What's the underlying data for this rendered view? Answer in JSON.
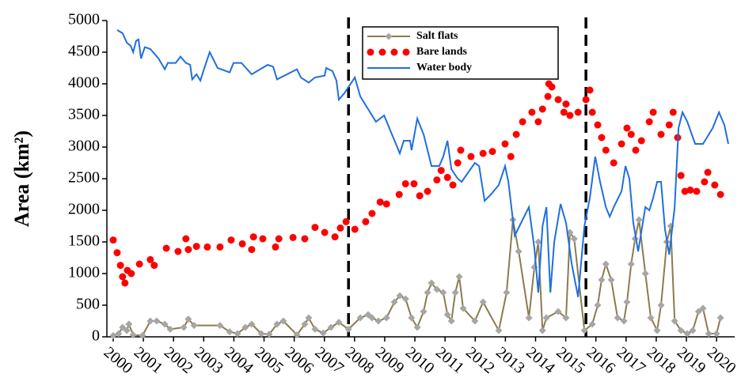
{
  "chart_data": {
    "type": "line",
    "y_label": "Area (km²)",
    "xlim": [
      1999.79,
      2020.6
    ],
    "xticks": [
      2000,
      2001,
      2002,
      2003,
      2004,
      2005,
      2006,
      2007,
      2008,
      2009,
      2010,
      2011,
      2012,
      2013,
      2014,
      2015,
      2016,
      2017,
      2018,
      2019,
      2020
    ],
    "ylim": [
      0,
      5000
    ],
    "yticks": [
      0,
      500,
      1000,
      1500,
      2000,
      2500,
      3000,
      3500,
      4000,
      4500,
      5000
    ],
    "vlines": [
      2007.8,
      2015.67
    ],
    "legend": "top",
    "series": [
      {
        "name": "Salt flats",
        "color": "#8c7b4f",
        "marker": "diamond",
        "marker_color": "#a6a6a6",
        "line": true,
        "x": [
          2000.0,
          2000.18,
          2000.31,
          2000.45,
          2000.52,
          2000.66,
          2000.97,
          2001.23,
          2001.44,
          2001.71,
          2001.89,
          2002.34,
          2002.49,
          2002.68,
          2003.54,
          2003.86,
          2004.12,
          2004.38,
          2004.59,
          2004.91,
          2005.17,
          2005.43,
          2005.64,
          2006.09,
          2006.35,
          2006.48,
          2006.69,
          2006.96,
          2007.22,
          2007.48,
          2007.8,
          2008.19,
          2008.45,
          2008.58,
          2008.79,
          2009.06,
          2009.32,
          2009.5,
          2009.69,
          2009.89,
          2010.08,
          2010.29,
          2010.42,
          2010.55,
          2010.73,
          2010.94,
          2011.08,
          2011.21,
          2011.34,
          2011.47,
          2011.6,
          2011.99,
          2012.26,
          2012.78,
          2013.04,
          2013.25,
          2013.44,
          2013.78,
          2013.96,
          2014.09,
          2014.23,
          2014.36,
          2014.75,
          2015.01,
          2015.14,
          2015.28,
          2015.62,
          2015.88,
          2016.06,
          2016.19,
          2016.33,
          2016.51,
          2016.72,
          2016.93,
          2017.03,
          2017.17,
          2017.3,
          2017.43,
          2017.64,
          2017.82,
          2018.03,
          2018.16,
          2018.35,
          2018.48,
          2018.61,
          2018.82,
          2019.03,
          2019.21,
          2019.4,
          2019.55,
          2019.74,
          2020.0,
          2020.13
        ],
        "values": [
          20,
          50,
          150,
          100,
          200,
          30,
          20,
          250,
          250,
          200,
          120,
          150,
          280,
          180,
          180,
          80,
          50,
          150,
          200,
          50,
          40,
          200,
          250,
          30,
          200,
          300,
          120,
          60,
          150,
          230,
          120,
          300,
          350,
          300,
          250,
          300,
          550,
          650,
          600,
          300,
          150,
          400,
          700,
          850,
          750,
          700,
          350,
          250,
          700,
          950,
          450,
          250,
          550,
          100,
          700,
          1850,
          1350,
          300,
          1100,
          1500,
          100,
          300,
          400,
          300,
          1650,
          1550,
          100,
          200,
          500,
          900,
          1150,
          900,
          300,
          250,
          550,
          1150,
          1550,
          1850,
          1000,
          300,
          100,
          500,
          1500,
          1750,
          250,
          100,
          50,
          100,
          400,
          450,
          50,
          50,
          300
        ]
      },
      {
        "name": "Bare lands",
        "color": "#ff0000",
        "marker": "dot",
        "line": false,
        "x": [
          2000.0,
          2000.13,
          2000.24,
          2000.31,
          2000.39,
          2000.47,
          2000.6,
          2000.87,
          2001.23,
          2001.36,
          2001.76,
          2002.15,
          2002.41,
          2002.49,
          2002.76,
          2003.12,
          2003.54,
          2003.91,
          2004.28,
          2004.59,
          2004.65,
          2004.96,
          2005.38,
          2005.49,
          2005.96,
          2006.35,
          2006.69,
          2007.01,
          2007.35,
          2007.53,
          2007.72,
          2008.01,
          2008.37,
          2008.58,
          2008.85,
          2009.06,
          2009.48,
          2009.69,
          2009.97,
          2010.16,
          2010.42,
          2010.73,
          2010.87,
          2011.08,
          2011.26,
          2011.42,
          2011.52,
          2011.86,
          2012.26,
          2012.57,
          2012.99,
          2013.18,
          2013.36,
          2013.57,
          2013.88,
          2014.09,
          2014.23,
          2014.41,
          2014.44,
          2014.54,
          2014.75,
          2014.94,
          2015.01,
          2015.14,
          2015.41,
          2015.67,
          2015.8,
          2015.88,
          2016.06,
          2016.19,
          2016.33,
          2016.59,
          2016.85,
          2017.03,
          2017.17,
          2017.32,
          2017.51,
          2017.77,
          2017.9,
          2018.16,
          2018.43,
          2018.56,
          2018.71,
          2018.82,
          2018.95,
          2019.13,
          2019.34,
          2019.6,
          2019.71,
          2019.94,
          2020.13
        ],
        "values": [
          1530,
          1330,
          1130,
          950,
          850,
          1050,
          1000,
          1150,
          1220,
          1130,
          1400,
          1350,
          1550,
          1380,
          1430,
          1420,
          1420,
          1530,
          1470,
          1380,
          1580,
          1550,
          1420,
          1550,
          1570,
          1550,
          1730,
          1650,
          1580,
          1720,
          1820,
          1700,
          1820,
          1950,
          2130,
          2100,
          2250,
          2420,
          2420,
          2230,
          2300,
          2480,
          2630,
          2520,
          2400,
          2750,
          2950,
          2850,
          2900,
          2930,
          3050,
          2850,
          3200,
          3400,
          3550,
          3400,
          3600,
          3800,
          4000,
          3950,
          3750,
          3550,
          3680,
          3500,
          3550,
          3750,
          3900,
          3550,
          3350,
          3150,
          2950,
          2750,
          3050,
          3300,
          3200,
          2950,
          3100,
          3400,
          3550,
          3200,
          3350,
          3550,
          3150,
          2550,
          2300,
          2320,
          2300,
          2450,
          2600,
          2400,
          2250
        ]
      },
      {
        "name": "Water body",
        "color": "#1f6fe0",
        "marker": "none",
        "line": true,
        "x": [
          2000.13,
          2000.31,
          2000.45,
          2000.58,
          2000.66,
          2000.76,
          2000.84,
          2000.92,
          2001.05,
          2001.23,
          2001.5,
          2001.71,
          2001.81,
          2002.07,
          2002.23,
          2002.41,
          2002.55,
          2002.62,
          2002.76,
          2002.89,
          2003.02,
          2003.2,
          2003.46,
          2003.86,
          2003.99,
          2004.25,
          2004.59,
          2005.12,
          2005.3,
          2005.43,
          2006.09,
          2006.22,
          2006.48,
          2006.69,
          2007.01,
          2007.06,
          2007.27,
          2007.4,
          2007.48,
          2007.66,
          2008.01,
          2008.19,
          2008.45,
          2008.71,
          2008.98,
          2009.24,
          2009.37,
          2009.5,
          2009.63,
          2009.84,
          2009.89,
          2010.08,
          2010.29,
          2010.42,
          2010.55,
          2010.81,
          2010.94,
          2011.08,
          2011.21,
          2011.42,
          2011.55,
          2011.99,
          2012.13,
          2012.31,
          2012.52,
          2012.78,
          2012.99,
          2013.1,
          2013.31,
          2013.57,
          2013.78,
          2013.96,
          2014.09,
          2014.23,
          2014.36,
          2014.49,
          2014.62,
          2014.83,
          2015.01,
          2015.2,
          2015.41,
          2015.62,
          2015.8,
          2015.98,
          2016.14,
          2016.33,
          2016.46,
          2016.59,
          2016.85,
          2016.98,
          2017.11,
          2017.24,
          2017.4,
          2017.64,
          2017.77,
          2017.9,
          2018.03,
          2018.16,
          2018.29,
          2018.43,
          2018.61,
          2018.74,
          2018.87,
          2019.03,
          2019.29,
          2019.55,
          2019.87,
          2020.08,
          2020.26,
          2020.39
        ],
        "values": [
          4850,
          4800,
          4650,
          4600,
          4500,
          4680,
          4700,
          4400,
          4580,
          4550,
          4400,
          4230,
          4330,
          4330,
          4430,
          4330,
          4300,
          4070,
          4150,
          4050,
          4250,
          4500,
          4250,
          4180,
          4330,
          4330,
          4150,
          4300,
          4270,
          4070,
          4230,
          4100,
          4020,
          4100,
          4130,
          4250,
          4200,
          4050,
          3750,
          3850,
          4100,
          3800,
          3600,
          3400,
          3500,
          3200,
          3050,
          2900,
          3100,
          3100,
          2950,
          3450,
          3200,
          2950,
          2700,
          2700,
          2850,
          3100,
          2650,
          2500,
          2450,
          2750,
          2700,
          2150,
          2250,
          2400,
          2700,
          2450,
          1600,
          1850,
          2050,
          1400,
          700,
          1750,
          2050,
          700,
          1500,
          2100,
          1800,
          1150,
          630,
          1750,
          2200,
          2850,
          2450,
          2050,
          1900,
          2050,
          2300,
          2700,
          2500,
          1800,
          1350,
          2050,
          2000,
          2200,
          2450,
          2450,
          1700,
          1300,
          2050,
          3300,
          3550,
          3400,
          3050,
          3050,
          3300,
          3550,
          3350,
          3050
        ]
      }
    ]
  }
}
